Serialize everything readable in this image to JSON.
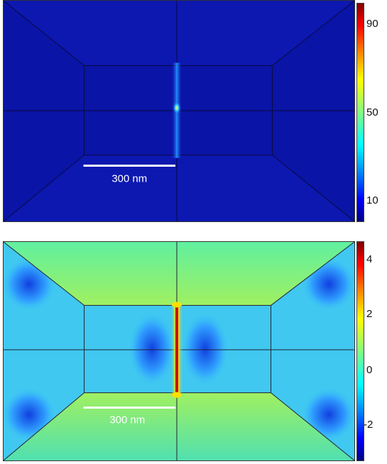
{
  "top_panel": {
    "scale_bar_label": "300 nm",
    "colorbar_ticks": [
      "90",
      "50",
      "10"
    ]
  },
  "bottom_panel": {
    "scale_bar_label": "300 nm",
    "colorbar_ticks": [
      "4",
      "2",
      "0",
      "-2"
    ]
  }
}
